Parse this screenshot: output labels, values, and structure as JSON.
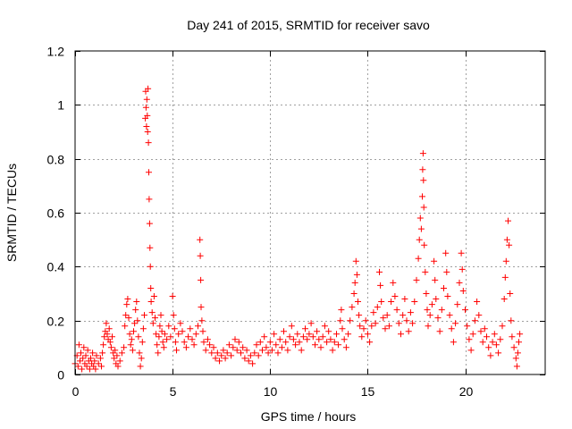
{
  "chart_data": {
    "type": "scatter",
    "title": "Day 241 of 2015, SRMTID for receiver savo",
    "xlabel": "GPS time / hours",
    "ylabel": "SRMTID / TECUs",
    "xlim": [
      0,
      24.1
    ],
    "ylim": [
      0,
      1.2
    ],
    "xticks": [
      0,
      5,
      10,
      15,
      20
    ],
    "yticks": [
      0,
      0.2,
      0.4,
      0.6,
      0.8,
      1,
      1.2
    ],
    "ytick_labels": [
      "0",
      "0.2",
      "0.4",
      "0.6",
      "0.8",
      "1",
      "1.2"
    ],
    "grid": true,
    "marker": "+",
    "color": "#ff0000",
    "series": [
      {
        "name": "SRMTID",
        "points": [
          [
            0.0,
            0.04
          ],
          [
            0.1,
            0.07
          ],
          [
            0.15,
            0.03
          ],
          [
            0.2,
            0.11
          ],
          [
            0.25,
            0.05
          ],
          [
            0.3,
            0.08
          ],
          [
            0.35,
            0.02
          ],
          [
            0.4,
            0.06
          ],
          [
            0.45,
            0.1
          ],
          [
            0.5,
            0.04
          ],
          [
            0.55,
            0.07
          ],
          [
            0.6,
            0.03
          ],
          [
            0.65,
            0.09
          ],
          [
            0.7,
            0.05
          ],
          [
            0.75,
            0.02
          ],
          [
            0.8,
            0.06
          ],
          [
            0.85,
            0.04
          ],
          [
            0.9,
            0.08
          ],
          [
            0.95,
            0.03
          ],
          [
            1.0,
            0.05
          ],
          [
            1.05,
            0.02
          ],
          [
            1.1,
            0.07
          ],
          [
            1.2,
            0.04
          ],
          [
            1.3,
            0.06
          ],
          [
            1.35,
            0.03
          ],
          [
            1.4,
            0.08
          ],
          [
            1.45,
            0.11
          ],
          [
            1.5,
            0.14
          ],
          [
            1.55,
            0.16
          ],
          [
            1.6,
            0.19
          ],
          [
            1.65,
            0.15
          ],
          [
            1.7,
            0.13
          ],
          [
            1.75,
            0.17
          ],
          [
            1.8,
            0.12
          ],
          [
            1.85,
            0.1
          ],
          [
            1.9,
            0.14
          ],
          [
            1.95,
            0.08
          ],
          [
            2.0,
            0.06
          ],
          [
            2.05,
            0.09
          ],
          [
            2.1,
            0.04
          ],
          [
            2.15,
            0.07
          ],
          [
            2.2,
            0.03
          ],
          [
            2.3,
            0.05
          ],
          [
            2.4,
            0.08
          ],
          [
            2.5,
            0.1
          ],
          [
            2.55,
            0.18
          ],
          [
            2.6,
            0.22
          ],
          [
            2.65,
            0.26
          ],
          [
            2.7,
            0.28
          ],
          [
            2.75,
            0.21
          ],
          [
            2.8,
            0.15
          ],
          [
            2.85,
            0.11
          ],
          [
            2.9,
            0.13
          ],
          [
            2.95,
            0.09
          ],
          [
            3.0,
            0.16
          ],
          [
            3.05,
            0.19
          ],
          [
            3.1,
            0.24
          ],
          [
            3.15,
            0.27
          ],
          [
            3.2,
            0.2
          ],
          [
            3.25,
            0.14
          ],
          [
            3.3,
            0.08
          ],
          [
            3.35,
            0.03
          ],
          [
            3.4,
            0.06
          ],
          [
            3.45,
            0.12
          ],
          [
            3.5,
            0.17
          ],
          [
            3.55,
            0.22
          ],
          [
            3.6,
            0.95
          ],
          [
            3.62,
            1.05
          ],
          [
            3.64,
            0.99
          ],
          [
            3.66,
            0.92
          ],
          [
            3.68,
            1.02
          ],
          [
            3.7,
            0.96
          ],
          [
            3.72,
            0.9
          ],
          [
            3.74,
            1.06
          ],
          [
            3.76,
            0.86
          ],
          [
            3.78,
            0.75
          ],
          [
            3.8,
            0.65
          ],
          [
            3.82,
            0.56
          ],
          [
            3.84,
            0.47
          ],
          [
            3.86,
            0.4
          ],
          [
            3.88,
            0.32
          ],
          [
            3.9,
            0.27
          ],
          [
            3.95,
            0.23
          ],
          [
            4.0,
            0.19
          ],
          [
            4.05,
            0.29
          ],
          [
            4.1,
            0.21
          ],
          [
            4.15,
            0.15
          ],
          [
            4.2,
            0.11
          ],
          [
            4.25,
            0.08
          ],
          [
            4.3,
            0.14
          ],
          [
            4.35,
            0.18
          ],
          [
            4.4,
            0.22
          ],
          [
            4.45,
            0.16
          ],
          [
            4.5,
            0.12
          ],
          [
            4.55,
            0.1
          ],
          [
            4.6,
            0.15
          ],
          [
            4.7,
            0.13
          ],
          [
            4.8,
            0.18
          ],
          [
            4.9,
            0.14
          ],
          [
            5.0,
            0.29
          ],
          [
            5.05,
            0.22
          ],
          [
            5.1,
            0.17
          ],
          [
            5.15,
            0.12
          ],
          [
            5.2,
            0.09
          ],
          [
            5.3,
            0.15
          ],
          [
            5.4,
            0.19
          ],
          [
            5.5,
            0.16
          ],
          [
            5.6,
            0.12
          ],
          [
            5.7,
            0.1
          ],
          [
            5.8,
            0.14
          ],
          [
            5.9,
            0.17
          ],
          [
            6.0,
            0.13
          ],
          [
            6.1,
            0.11
          ],
          [
            6.2,
            0.15
          ],
          [
            6.3,
            0.18
          ],
          [
            6.4,
            0.5
          ],
          [
            6.42,
            0.44
          ],
          [
            6.44,
            0.35
          ],
          [
            6.46,
            0.25
          ],
          [
            6.5,
            0.2
          ],
          [
            6.55,
            0.16
          ],
          [
            6.6,
            0.12
          ],
          [
            6.7,
            0.09
          ],
          [
            6.8,
            0.13
          ],
          [
            6.9,
            0.11
          ],
          [
            7.0,
            0.08
          ],
          [
            7.1,
            0.1
          ],
          [
            7.2,
            0.06
          ],
          [
            7.3,
            0.08
          ],
          [
            7.4,
            0.05
          ],
          [
            7.5,
            0.07
          ],
          [
            7.6,
            0.09
          ],
          [
            7.7,
            0.06
          ],
          [
            7.8,
            0.08
          ],
          [
            7.9,
            0.11
          ],
          [
            8.0,
            0.07
          ],
          [
            8.1,
            0.1
          ],
          [
            8.2,
            0.13
          ],
          [
            8.3,
            0.09
          ],
          [
            8.4,
            0.12
          ],
          [
            8.5,
            0.08
          ],
          [
            8.6,
            0.1
          ],
          [
            8.7,
            0.06
          ],
          [
            8.8,
            0.09
          ],
          [
            8.9,
            0.05
          ],
          [
            9.0,
            0.07
          ],
          [
            9.1,
            0.04
          ],
          [
            9.2,
            0.08
          ],
          [
            9.3,
            0.11
          ],
          [
            9.4,
            0.07
          ],
          [
            9.5,
            0.12
          ],
          [
            9.6,
            0.09
          ],
          [
            9.7,
            0.14
          ],
          [
            9.8,
            0.1
          ],
          [
            9.9,
            0.08
          ],
          [
            10.0,
            0.12
          ],
          [
            10.1,
            0.09
          ],
          [
            10.2,
            0.15
          ],
          [
            10.3,
            0.11
          ],
          [
            10.4,
            0.08
          ],
          [
            10.5,
            0.13
          ],
          [
            10.6,
            0.1
          ],
          [
            10.7,
            0.16
          ],
          [
            10.8,
            0.12
          ],
          [
            10.9,
            0.09
          ],
          [
            11.0,
            0.14
          ],
          [
            11.1,
            0.18
          ],
          [
            11.2,
            0.13
          ],
          [
            11.3,
            0.11
          ],
          [
            11.4,
            0.15
          ],
          [
            11.5,
            0.12
          ],
          [
            11.6,
            0.09
          ],
          [
            11.7,
            0.14
          ],
          [
            11.8,
            0.17
          ],
          [
            11.9,
            0.13
          ],
          [
            12.0,
            0.15
          ],
          [
            12.1,
            0.19
          ],
          [
            12.2,
            0.14
          ],
          [
            12.3,
            0.11
          ],
          [
            12.4,
            0.16
          ],
          [
            12.5,
            0.13
          ],
          [
            12.6,
            0.1
          ],
          [
            12.7,
            0.14
          ],
          [
            12.8,
            0.18
          ],
          [
            12.9,
            0.12
          ],
          [
            13.0,
            0.16
          ],
          [
            13.1,
            0.13
          ],
          [
            13.2,
            0.09
          ],
          [
            13.3,
            0.12
          ],
          [
            13.4,
            0.15
          ],
          [
            13.5,
            0.11
          ],
          [
            13.6,
            0.2
          ],
          [
            13.65,
            0.24
          ],
          [
            13.7,
            0.17
          ],
          [
            13.8,
            0.13
          ],
          [
            13.9,
            0.1
          ],
          [
            14.0,
            0.15
          ],
          [
            14.1,
            0.2
          ],
          [
            14.2,
            0.25
          ],
          [
            14.3,
            0.3
          ],
          [
            14.35,
            0.34
          ],
          [
            14.4,
            0.42
          ],
          [
            14.45,
            0.37
          ],
          [
            14.5,
            0.27
          ],
          [
            14.55,
            0.22
          ],
          [
            14.6,
            0.18
          ],
          [
            14.7,
            0.14
          ],
          [
            14.8,
            0.17
          ],
          [
            14.9,
            0.2
          ],
          [
            15.0,
            0.15
          ],
          [
            15.1,
            0.12
          ],
          [
            15.2,
            0.18
          ],
          [
            15.3,
            0.23
          ],
          [
            15.4,
            0.19
          ],
          [
            15.5,
            0.25
          ],
          [
            15.6,
            0.38
          ],
          [
            15.65,
            0.33
          ],
          [
            15.7,
            0.27
          ],
          [
            15.8,
            0.21
          ],
          [
            15.9,
            0.17
          ],
          [
            16.0,
            0.22
          ],
          [
            16.1,
            0.18
          ],
          [
            16.2,
            0.27
          ],
          [
            16.3,
            0.34
          ],
          [
            16.4,
            0.29
          ],
          [
            16.5,
            0.24
          ],
          [
            16.6,
            0.19
          ],
          [
            16.7,
            0.15
          ],
          [
            16.8,
            0.22
          ],
          [
            16.9,
            0.28
          ],
          [
            17.0,
            0.2
          ],
          [
            17.1,
            0.16
          ],
          [
            17.2,
            0.23
          ],
          [
            17.3,
            0.19
          ],
          [
            17.4,
            0.27
          ],
          [
            17.5,
            0.35
          ],
          [
            17.6,
            0.43
          ],
          [
            17.65,
            0.5
          ],
          [
            17.7,
            0.58
          ],
          [
            17.75,
            0.54
          ],
          [
            17.8,
            0.66
          ],
          [
            17.82,
            0.76
          ],
          [
            17.84,
            0.82
          ],
          [
            17.86,
            0.72
          ],
          [
            17.88,
            0.62
          ],
          [
            17.9,
            0.48
          ],
          [
            17.95,
            0.38
          ],
          [
            18.0,
            0.3
          ],
          [
            18.05,
            0.24
          ],
          [
            18.1,
            0.18
          ],
          [
            18.2,
            0.22
          ],
          [
            18.3,
            0.26
          ],
          [
            18.4,
            0.42
          ],
          [
            18.45,
            0.35
          ],
          [
            18.5,
            0.28
          ],
          [
            18.6,
            0.21
          ],
          [
            18.7,
            0.16
          ],
          [
            18.8,
            0.24
          ],
          [
            18.9,
            0.32
          ],
          [
            19.0,
            0.45
          ],
          [
            19.05,
            0.38
          ],
          [
            19.1,
            0.29
          ],
          [
            19.2,
            0.22
          ],
          [
            19.3,
            0.17
          ],
          [
            19.4,
            0.12
          ],
          [
            19.5,
            0.19
          ],
          [
            19.6,
            0.26
          ],
          [
            19.7,
            0.34
          ],
          [
            19.8,
            0.45
          ],
          [
            19.85,
            0.39
          ],
          [
            19.9,
            0.31
          ],
          [
            20.0,
            0.24
          ],
          [
            20.1,
            0.18
          ],
          [
            20.2,
            0.13
          ],
          [
            20.3,
            0.09
          ],
          [
            20.4,
            0.15
          ],
          [
            20.5,
            0.2
          ],
          [
            20.6,
            0.27
          ],
          [
            20.7,
            0.22
          ],
          [
            20.8,
            0.16
          ],
          [
            20.9,
            0.12
          ],
          [
            21.0,
            0.17
          ],
          [
            21.1,
            0.14
          ],
          [
            21.2,
            0.1
          ],
          [
            21.3,
            0.07
          ],
          [
            21.4,
            0.12
          ],
          [
            21.5,
            0.15
          ],
          [
            21.6,
            0.11
          ],
          [
            21.7,
            0.08
          ],
          [
            21.8,
            0.13
          ],
          [
            21.9,
            0.18
          ],
          [
            22.0,
            0.28
          ],
          [
            22.05,
            0.36
          ],
          [
            22.1,
            0.42
          ],
          [
            22.15,
            0.5
          ],
          [
            22.2,
            0.57
          ],
          [
            22.25,
            0.48
          ],
          [
            22.3,
            0.3
          ],
          [
            22.35,
            0.2
          ],
          [
            22.4,
            0.14
          ],
          [
            22.5,
            0.1
          ],
          [
            22.6,
            0.06
          ],
          [
            22.65,
            0.03
          ],
          [
            22.7,
            0.08
          ],
          [
            22.75,
            0.12
          ],
          [
            22.8,
            0.15
          ]
        ]
      }
    ]
  }
}
